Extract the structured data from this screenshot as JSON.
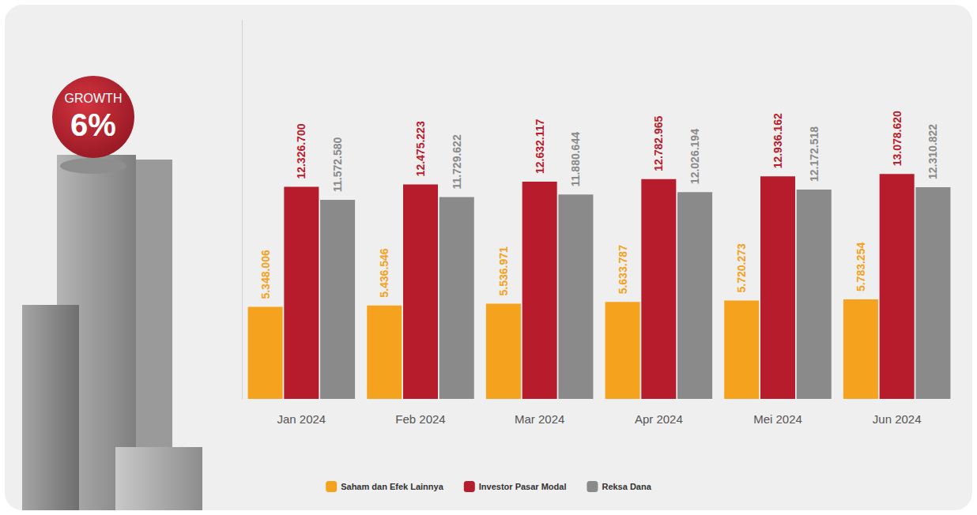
{
  "chart_data": {
    "type": "bar",
    "annotations": [
      "GROWTH",
      "6%"
    ],
    "categories": [
      "Jan 2024",
      "Feb 2024",
      "Mar 2024",
      "Apr 2024",
      "Mei 2024",
      "Jun 2024"
    ],
    "series": [
      {
        "name": "Saham dan Efek Lainnya",
        "color": "#F5A21E",
        "values": [
          5348006,
          5436546,
          5536971,
          5633787,
          5720273,
          5783254
        ],
        "value_labels": [
          "5.348.006",
          "5.436.546",
          "5.536.971",
          "5.633.787",
          "5.720.273",
          "5.783.254"
        ]
      },
      {
        "name": "Investor Pasar Modal",
        "color": "#B71C2C",
        "values": [
          12326700,
          12475223,
          12632117,
          12782965,
          12936162,
          13078620
        ],
        "value_labels": [
          "12.326.700",
          "12.475.223",
          "12.632.117",
          "12.782.965",
          "12.936.162",
          "13.078.620"
        ]
      },
      {
        "name": "Reksa Dana",
        "color": "#8A8A8A",
        "values": [
          11572580,
          11729622,
          11880644,
          12026194,
          12172518,
          12310822
        ],
        "value_labels": [
          "11.572.580",
          "11.729.622",
          "11.880.644",
          "12.026.194",
          "12.172.518",
          "12.310.822"
        ]
      }
    ],
    "ylim": [
      0,
      22000000
    ],
    "tick_labels": false,
    "grid": false,
    "legend": "bottom",
    "data_labels": true
  }
}
